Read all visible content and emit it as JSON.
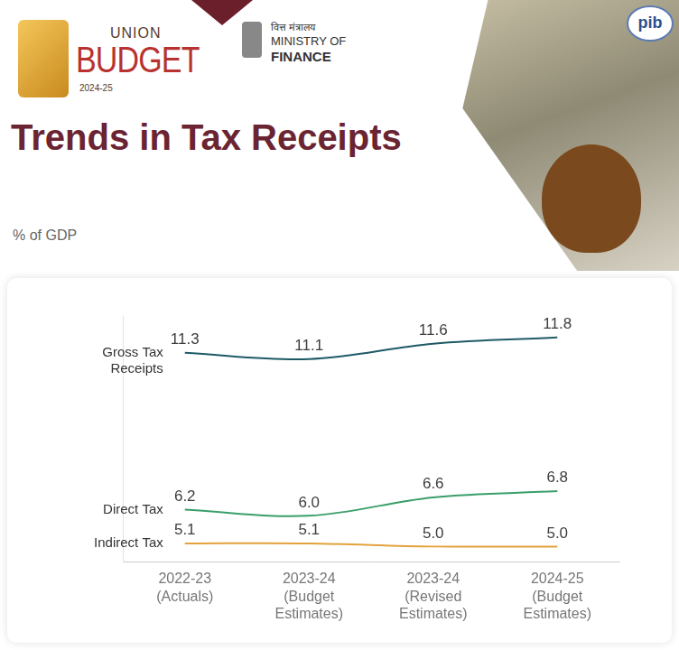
{
  "header": {
    "logo": [
      "UNION",
      "BUDGET",
      "2024-25"
    ],
    "ministry": [
      "वित्त मंत्रालय",
      "MINISTRY OF",
      "FINANCE"
    ],
    "badge": "pib"
  },
  "chart_data": {
    "type": "line",
    "title": "Trends in Tax Receipts",
    "subtitle": "% of GDP",
    "categories": [
      "2022-23 (Actuals)",
      "2023-24 (Budget Estimates)",
      "2023-24 (Revised Estimates)",
      "2024-25 (Budget Estimates)"
    ],
    "series": [
      {
        "name": "Gross Tax Receipts",
        "color": "#1e5a66",
        "values": [
          11.3,
          11.1,
          11.6,
          11.8
        ],
        "value_labels": [
          "11.3",
          "11.1",
          "11.6",
          "11.8"
        ]
      },
      {
        "name": "Direct Tax",
        "color": "#3a9e6a",
        "values": [
          6.2,
          6.0,
          6.6,
          6.8
        ],
        "value_labels": [
          "6.2",
          "6.0",
          "6.6",
          "6.8"
        ]
      },
      {
        "name": "Indirect Tax",
        "color": "#e3a23b",
        "values": [
          5.1,
          5.1,
          5.0,
          5.0
        ],
        "value_labels": [
          "5.1",
          "5.1",
          "5.0",
          "5.0"
        ]
      }
    ],
    "ylim": [
      4.5,
      12.5
    ],
    "grid": false,
    "tick_labels": "x",
    "data_labels": true
  }
}
